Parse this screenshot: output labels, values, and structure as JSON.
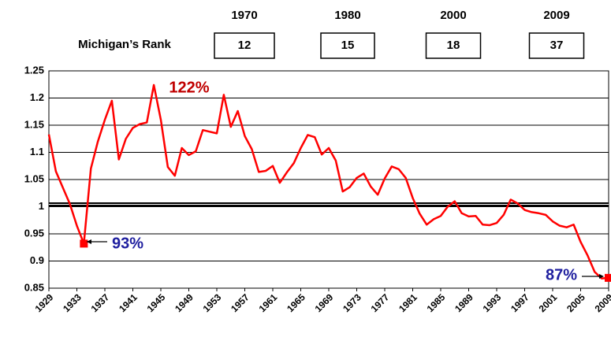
{
  "chart_data": {
    "type": "line",
    "rank_table": {
      "label": "Michigan’s Rank",
      "years": [
        "1970",
        "1980",
        "2000",
        "2009"
      ],
      "ranks": [
        12,
        15,
        18,
        37
      ]
    },
    "x": [
      1929,
      1930,
      1931,
      1932,
      1933,
      1934,
      1935,
      1936,
      1937,
      1938,
      1939,
      1940,
      1941,
      1942,
      1943,
      1944,
      1945,
      1946,
      1947,
      1948,
      1949,
      1950,
      1951,
      1952,
      1953,
      1954,
      1955,
      1956,
      1957,
      1958,
      1959,
      1960,
      1961,
      1962,
      1963,
      1964,
      1965,
      1966,
      1967,
      1968,
      1969,
      1970,
      1971,
      1972,
      1973,
      1974,
      1975,
      1976,
      1977,
      1978,
      1979,
      1980,
      1981,
      1982,
      1983,
      1984,
      1985,
      1986,
      1987,
      1988,
      1989,
      1990,
      1991,
      1992,
      1993,
      1994,
      1995,
      1996,
      1997,
      1998,
      1999,
      2000,
      2001,
      2002,
      2003,
      2004,
      2005,
      2006,
      2007,
      2008,
      2009
    ],
    "series": [
      {
        "color": "#ff0000",
        "values": [
          1.133,
          1.065,
          1.035,
          1.005,
          0.965,
          0.932,
          1.07,
          1.12,
          1.16,
          1.195,
          1.087,
          1.125,
          1.145,
          1.152,
          1.155,
          1.224,
          1.16,
          1.073,
          1.057,
          1.108,
          1.095,
          1.102,
          1.141,
          1.138,
          1.135,
          1.206,
          1.147,
          1.176,
          1.13,
          1.106,
          1.064,
          1.066,
          1.075,
          1.044,
          1.063,
          1.08,
          1.108,
          1.132,
          1.128,
          1.096,
          1.108,
          1.085,
          1.028,
          1.036,
          1.053,
          1.061,
          1.037,
          1.022,
          1.052,
          1.074,
          1.069,
          1.053,
          1.016,
          0.987,
          0.967,
          0.977,
          0.983,
          1.0,
          1.01,
          0.988,
          0.982,
          0.983,
          0.967,
          0.966,
          0.97,
          0.985,
          1.013,
          1.006,
          0.994,
          0.99,
          0.988,
          0.985,
          0.973,
          0.965,
          0.962,
          0.967,
          0.935,
          0.91,
          0.88,
          0.868,
          0.869
        ]
      }
    ],
    "markers": [
      1934,
      2009
    ],
    "annotations": [
      {
        "text": "122%",
        "color": "#c00000"
      },
      {
        "text": "93%",
        "color": "#1f1f9f"
      },
      {
        "text": "87%",
        "color": "#1f1f9f"
      }
    ],
    "reference_line": 1,
    "xlim": [
      1929,
      2009
    ],
    "xticks": [
      1929,
      1933,
      1937,
      1941,
      1945,
      1949,
      1953,
      1957,
      1961,
      1965,
      1969,
      1973,
      1977,
      1981,
      1985,
      1989,
      1993,
      1997,
      2001,
      2005,
      2009
    ],
    "ylim": [
      0.85,
      1.25
    ],
    "yticks": [
      0.85,
      0.9,
      0.95,
      1,
      1.05,
      1.1,
      1.15,
      1.2,
      1.25
    ],
    "grid": true
  }
}
